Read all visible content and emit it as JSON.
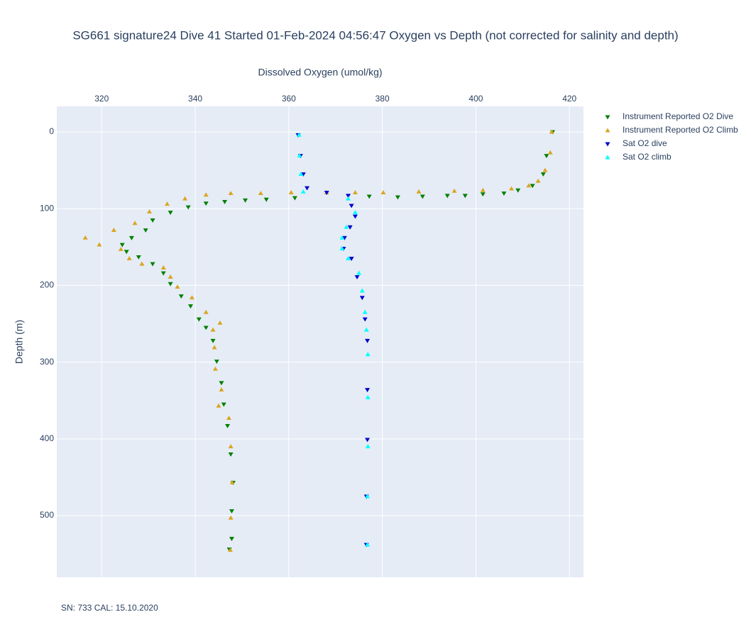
{
  "chart_data": {
    "type": "scatter",
    "title": "SG661 signature24 Dive 41 Started 01-Feb-2024 04:56:47  Oxygen vs Depth (not corrected for salinity and depth)",
    "x_title": "Dissolved Oxygen (umol/kg)",
    "y_title": "Depth (m)",
    "annotation": "SN: 733  CAL: 15.10.2020",
    "xlim": [
      310.4,
      423.0
    ],
    "xticks": [
      320,
      340,
      360,
      380,
      400,
      420
    ],
    "ylim": [
      -33.3,
      580.4
    ],
    "yticks": [
      0,
      100,
      200,
      300,
      400,
      500
    ],
    "y_reversed": true,
    "grid": true,
    "legend": "right",
    "series": [
      {
        "name": "Instrument Reported O2 Dive",
        "color": "#008000",
        "symbol": "triangle-down",
        "x": [
          416.4,
          415.1,
          414.4,
          412.1,
          409,
          406,
          401.5,
          397.7,
          393.9,
          388.6,
          383.3,
          377.2,
          361.3,
          355.2,
          350.7,
          346.3,
          342.3,
          338.5,
          334.7,
          330.9,
          329.4,
          326.4,
          324.4,
          325.3,
          327.9,
          330.9,
          333.2,
          334.7,
          337,
          339,
          340.8,
          342.3,
          343.8,
          344.6,
          345.6,
          346.1,
          346.9,
          347.6,
          348.1,
          347.8,
          347.8,
          347.3
        ],
        "values": [
          0,
          31,
          55,
          70,
          76,
          80,
          81,
          83,
          83,
          84,
          85,
          84,
          86,
          88,
          89,
          91,
          93,
          98,
          105,
          115,
          128,
          138,
          147,
          156,
          163,
          172,
          184,
          198,
          214,
          227,
          244,
          255,
          272,
          299,
          327,
          355,
          383,
          420,
          457,
          494,
          530,
          544
        ]
      },
      {
        "name": "Instrument Reported O2 Climb",
        "color": "#daa520",
        "symbol": "triangle-up",
        "x": [
          416.2,
          415.9,
          414.8,
          413.3,
          411.3,
          407.6,
          401.5,
          395.4,
          387.8,
          380.2,
          374.2,
          368.1,
          360.5,
          354,
          347.6,
          342.3,
          337.8,
          334,
          330.2,
          327.1,
          322.6,
          316.5,
          319.5,
          324.1,
          325.9,
          328.6,
          333.2,
          334.7,
          336.2,
          339.3,
          342.3,
          345.3,
          343.8,
          344.1,
          344.3,
          345.6,
          345,
          347.2,
          347.6,
          347.9,
          347.6,
          347.5
        ],
        "values": [
          0,
          27,
          50,
          64,
          70,
          74,
          76,
          77,
          78,
          79,
          79,
          79,
          79,
          80,
          80,
          82,
          87,
          94,
          104,
          119,
          128,
          138,
          147,
          153,
          165,
          172,
          177,
          189,
          202,
          216,
          235,
          249,
          258,
          281,
          309,
          336,
          357,
          373,
          410,
          457,
          503,
          545
        ]
      },
      {
        "name": "Sat O2 dive",
        "color": "#0000cd",
        "symbol": "triangle-down",
        "x": [
          362,
          362.5,
          363.1,
          363.9,
          368.1,
          372.7,
          373.4,
          374.2,
          373.1,
          371.9,
          371.7,
          373.4,
          374.6,
          375.7,
          376.3,
          376.8,
          376.8,
          376.8,
          376.6,
          376.6
        ],
        "values": [
          4,
          31,
          55,
          73,
          79,
          83,
          96,
          110,
          124,
          138,
          152,
          165,
          189,
          216,
          244,
          272,
          336,
          401,
          475,
          538
        ]
      },
      {
        "name": "Sat O2 climb",
        "color": "#00ffff",
        "symbol": "triangle-up",
        "x": [
          362.2,
          362.3,
          362.6,
          363.1,
          372.7,
          374.2,
          372.3,
          371.4,
          371.4,
          372.7,
          375,
          375.7,
          376.3,
          376.6,
          376.9,
          376.9,
          376.9,
          376.8,
          376.8
        ],
        "values": [
          4,
          31,
          55,
          78,
          87,
          105,
          124,
          138,
          152,
          165,
          184,
          207,
          235,
          258,
          290,
          346,
          410,
          475,
          538
        ]
      }
    ]
  }
}
